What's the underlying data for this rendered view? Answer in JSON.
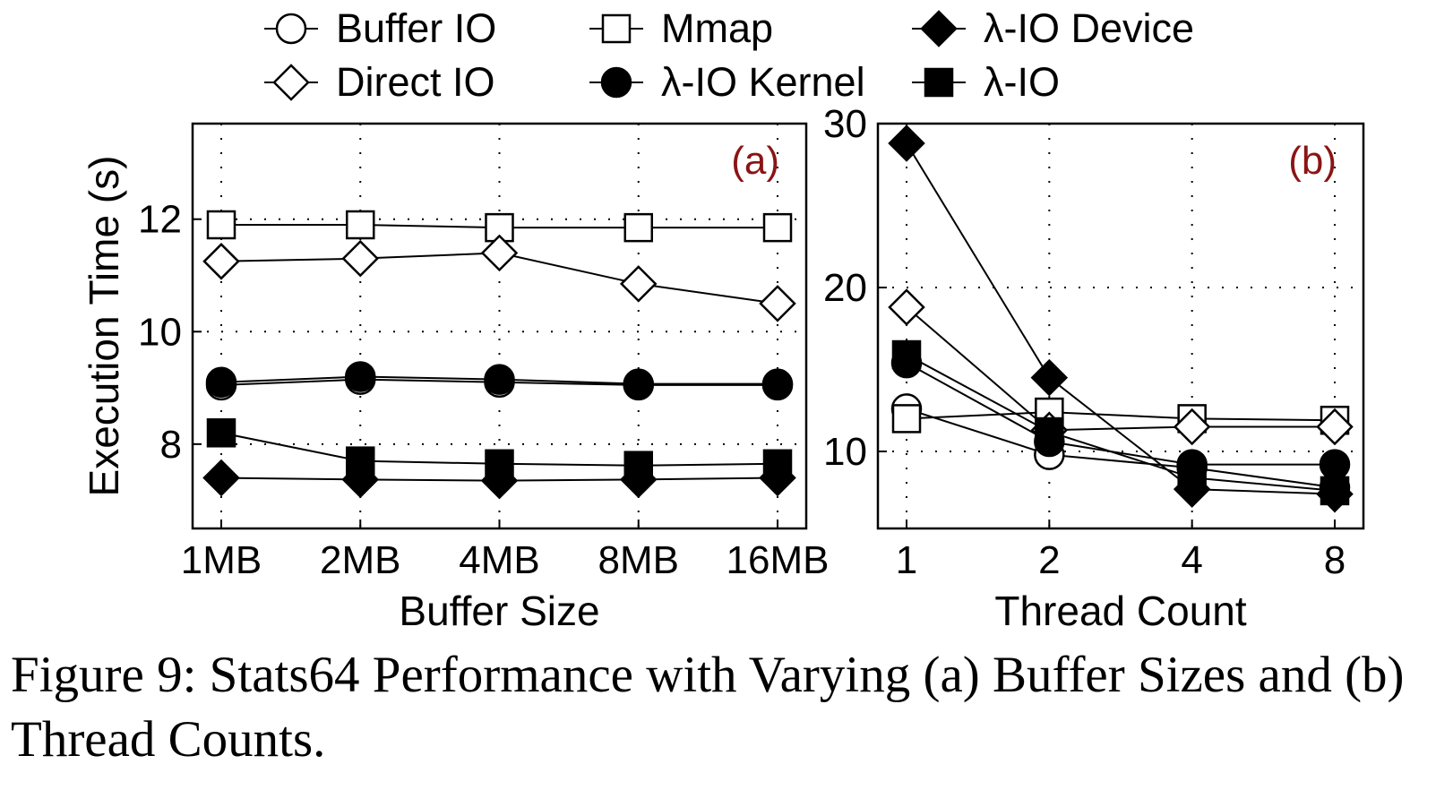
{
  "caption": "Figure 9: Stats64 Performance with Varying (a) Buffer Sizes and (b) Thread Counts.",
  "legend": [
    {
      "name": "Buffer IO",
      "marker": "circle-open"
    },
    {
      "name": "Mmap",
      "marker": "square-open"
    },
    {
      "name": "λ-IO Device",
      "marker": "diamond-filled"
    },
    {
      "name": "Direct IO",
      "marker": "diamond-open"
    },
    {
      "name": "λ-IO Kernel",
      "marker": "circle-filled"
    },
    {
      "name": "λ-IO",
      "marker": "square-filled"
    }
  ],
  "chart_data": [
    {
      "type": "line",
      "panel_tag": "(a)",
      "xlabel": "Buffer Size",
      "ylabel": "Execution Time (s)",
      "categories": [
        "1MB",
        "2MB",
        "4MB",
        "8MB",
        "16MB"
      ],
      "ylim": [
        6.5,
        13.7
      ],
      "yticks": [
        8,
        10,
        12
      ],
      "grid": true,
      "series": [
        {
          "name": "Mmap",
          "values": [
            11.9,
            11.9,
            11.85,
            11.85,
            11.85
          ]
        },
        {
          "name": "Direct IO",
          "values": [
            11.25,
            11.3,
            11.4,
            10.85,
            10.5
          ]
        },
        {
          "name": "Buffer IO",
          "values": [
            9.05,
            9.15,
            9.1,
            9.05,
            9.05
          ]
        },
        {
          "name": "λ-IO Kernel",
          "values": [
            9.1,
            9.2,
            9.15,
            9.07,
            9.07
          ]
        },
        {
          "name": "λ-IO",
          "values": [
            8.2,
            7.7,
            7.65,
            7.62,
            7.65
          ]
        },
        {
          "name": "λ-IO Device",
          "values": [
            7.4,
            7.37,
            7.35,
            7.37,
            7.4
          ]
        }
      ]
    },
    {
      "type": "line",
      "panel_tag": "(b)",
      "xlabel": "Thread Count",
      "ylabel": "",
      "categories": [
        "1",
        "2",
        "4",
        "8"
      ],
      "ylim": [
        5.3,
        30
      ],
      "yticks": [
        10,
        20,
        30
      ],
      "grid": true,
      "series": [
        {
          "name": "Buffer IO",
          "values": [
            12.6,
            9.8,
            9.0,
            7.8
          ]
        },
        {
          "name": "Mmap",
          "values": [
            12.0,
            12.4,
            12.0,
            11.9
          ]
        },
        {
          "name": "λ-IO Device",
          "values": [
            28.8,
            14.5,
            7.7,
            7.4
          ]
        },
        {
          "name": "Direct IO",
          "values": [
            18.8,
            11.3,
            11.5,
            11.5
          ]
        },
        {
          "name": "λ-IO Kernel",
          "values": [
            15.4,
            10.6,
            9.2,
            9.2
          ]
        },
        {
          "name": "λ-IO",
          "values": [
            15.9,
            11.2,
            8.4,
            7.6
          ]
        }
      ]
    }
  ]
}
